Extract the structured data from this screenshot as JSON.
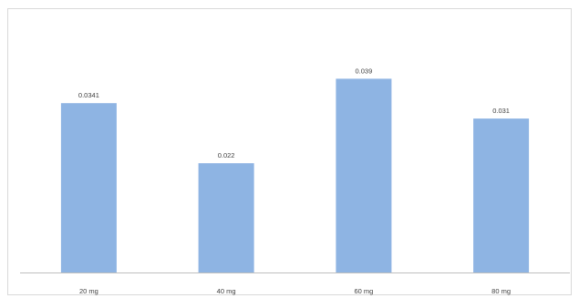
{
  "chart_data": {
    "type": "bar",
    "categories": [
      "20 mg",
      "40 mg",
      "60 mg",
      "80 mg"
    ],
    "values": [
      0.0341,
      0.022,
      0.039,
      0.031
    ],
    "data_labels": [
      "0.0341",
      "0.022",
      "0.039",
      "0.031"
    ],
    "title": "",
    "xlabel": "",
    "ylabel": "",
    "bar_color": "#8eb4e3",
    "axis_color": "#bfbfbf",
    "border_color": "#d9d9d9",
    "grid": false,
    "legend": "none"
  }
}
